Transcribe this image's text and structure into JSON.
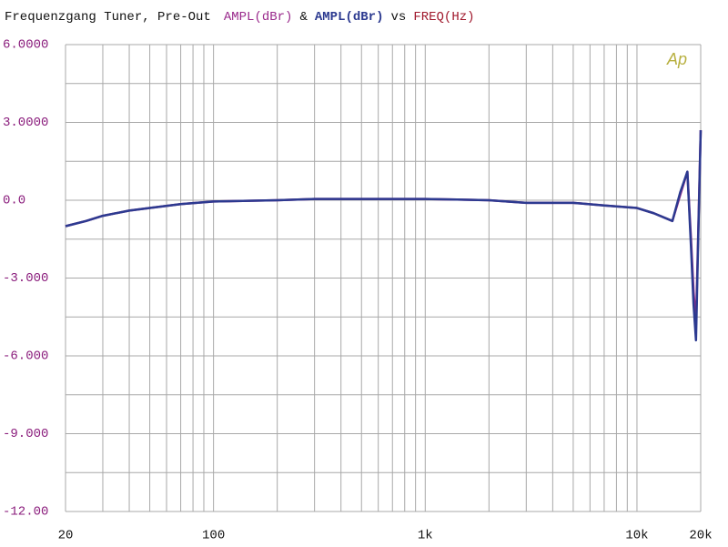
{
  "chart_data": {
    "type": "line",
    "title": "Frequenzgang Tuner, Pre-Out",
    "joiner": "&",
    "versus": "vs",
    "x_label": "FREQ(Hz)",
    "x_label_color": "#a0182c",
    "logo": "Ap",
    "logo_color": "#b8b040",
    "x": [
      20,
      25,
      30,
      40,
      50,
      70,
      100,
      200,
      300,
      500,
      1000,
      2000,
      3000,
      5000,
      7000,
      10000,
      12000,
      14700,
      16000,
      17300,
      18000,
      18500,
      19000,
      19500,
      20000
    ],
    "series": [
      {
        "name": "AMPL(dBr)",
        "color": "#9a2a8c",
        "values": [
          -1.0,
          -0.8,
          -0.6,
          -0.4,
          -0.3,
          -0.15,
          -0.05,
          0,
          0.05,
          0.05,
          0.05,
          0,
          -0.1,
          -0.1,
          -0.2,
          -0.3,
          -0.5,
          -0.8,
          0.2,
          1.1,
          -1.5,
          -3.5,
          -4.8,
          -1.0,
          2.7
        ]
      },
      {
        "name": "AMPL(dBr)",
        "color": "#2c3a90",
        "values": [
          -1.0,
          -0.8,
          -0.6,
          -0.4,
          -0.3,
          -0.15,
          -0.05,
          0,
          0.05,
          0.05,
          0.05,
          0,
          -0.1,
          -0.1,
          -0.2,
          -0.3,
          -0.5,
          -0.8,
          0.3,
          1.1,
          -1.8,
          -4.0,
          -5.4,
          -1.2,
          2.7
        ]
      }
    ],
    "log_x": true,
    "xlim": [
      20,
      20000
    ],
    "xticks": [
      20,
      100,
      {
        "value": 1000,
        "label": "1k"
      },
      {
        "value": 10000,
        "label": "10k"
      },
      {
        "value": 20000,
        "label": "20k"
      }
    ],
    "xgrid": [
      20,
      30,
      40,
      50,
      60,
      70,
      80,
      90,
      100,
      200,
      300,
      400,
      500,
      600,
      700,
      800,
      900,
      1000,
      2000,
      3000,
      4000,
      5000,
      6000,
      7000,
      8000,
      9000,
      10000,
      20000
    ],
    "ylim": [
      -12,
      6
    ],
    "yticks": [
      {
        "value": 6,
        "label": "6.0000"
      },
      {
        "value": 3,
        "label": "3.0000"
      },
      {
        "value": 0,
        "label": "0.0"
      },
      {
        "value": -3,
        "label": "-3.000"
      },
      {
        "value": -6,
        "label": "-6.000"
      },
      {
        "value": -9,
        "label": "-9.000"
      },
      {
        "value": -12,
        "label": "-12.00"
      }
    ],
    "ygrid": [
      6,
      4.5,
      3,
      1.5,
      0,
      -1.5,
      -3,
      -4.5,
      -6,
      -7.5,
      -9,
      -10.5,
      -12
    ],
    "ytick_color": "#8a1c7c",
    "grid": true
  }
}
